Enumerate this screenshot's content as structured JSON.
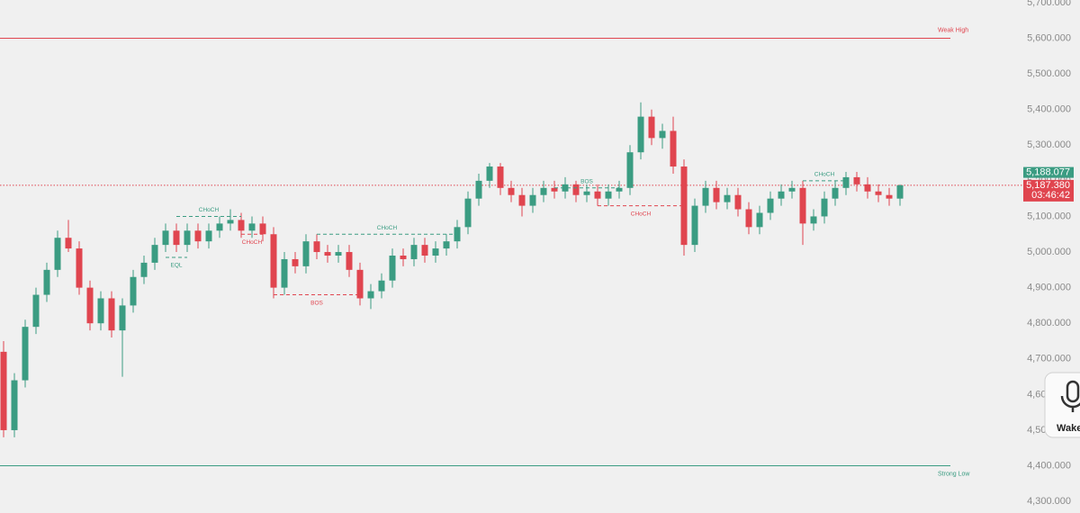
{
  "chart_data": {
    "type": "candlestick",
    "up_color": "#3b9c82",
    "down_color": "#e0454f",
    "ylim": [
      4270,
      5710
    ],
    "yticks": [
      {
        "value": 5700,
        "label": "5,700.000"
      },
      {
        "value": 5600,
        "label": "5,600.000"
      },
      {
        "value": 5500,
        "label": "5,500.000"
      },
      {
        "value": 5400,
        "label": "5,400.000"
      },
      {
        "value": 5300,
        "label": "5,300.000"
      },
      {
        "value": 5200,
        "label": "5,200.000"
      },
      {
        "value": 5100,
        "label": "5,100.000"
      },
      {
        "value": 5000,
        "label": "5,000.000"
      },
      {
        "value": 4900,
        "label": "4,900.000"
      },
      {
        "value": 4800,
        "label": "4,800.000"
      },
      {
        "value": 4700,
        "label": "4,700.000"
      },
      {
        "value": 4600,
        "label": "4,600.000"
      },
      {
        "value": 4500,
        "label": "4,500.000"
      },
      {
        "value": 4400,
        "label": "4,400.000"
      },
      {
        "value": 4300,
        "label": "4,300.000"
      }
    ],
    "candles": [
      [
        4720,
        4750,
        4480,
        4500
      ],
      [
        4500,
        4660,
        4480,
        4640
      ],
      [
        4640,
        4810,
        4620,
        4790
      ],
      [
        4790,
        4900,
        4770,
        4880
      ],
      [
        4880,
        4970,
        4860,
        4950
      ],
      [
        4950,
        5060,
        4930,
        5040
      ],
      [
        5040,
        5090,
        5000,
        5010
      ],
      [
        5010,
        5030,
        4880,
        4900
      ],
      [
        4900,
        4920,
        4780,
        4800
      ],
      [
        4800,
        4890,
        4780,
        4870
      ],
      [
        4870,
        4890,
        4760,
        4780
      ],
      [
        4780,
        4870,
        4650,
        4850
      ],
      [
        4850,
        4950,
        4830,
        4930
      ],
      [
        4930,
        4990,
        4910,
        4970
      ],
      [
        4970,
        5040,
        4950,
        5020
      ],
      [
        5020,
        5080,
        5000,
        5060
      ],
      [
        5060,
        5080,
        5000,
        5020
      ],
      [
        5020,
        5080,
        5000,
        5060
      ],
      [
        5060,
        5080,
        5010,
        5030
      ],
      [
        5030,
        5080,
        5010,
        5060
      ],
      [
        5060,
        5100,
        5040,
        5080
      ],
      [
        5080,
        5120,
        5060,
        5090
      ],
      [
        5090,
        5110,
        5040,
        5060
      ],
      [
        5060,
        5100,
        5040,
        5080
      ],
      [
        5080,
        5100,
        5030,
        5050
      ],
      [
        5050,
        5070,
        4870,
        4900
      ],
      [
        4900,
        5000,
        4880,
        4980
      ],
      [
        4980,
        5000,
        4940,
        4960
      ],
      [
        4960,
        5050,
        4940,
        5030
      ],
      [
        5030,
        5050,
        4980,
        5000
      ],
      [
        5000,
        5020,
        4970,
        4990
      ],
      [
        4990,
        5020,
        4970,
        5000
      ],
      [
        5000,
        5020,
        4930,
        4950
      ],
      [
        4950,
        4970,
        4850,
        4870
      ],
      [
        4870,
        4910,
        4840,
        4890
      ],
      [
        4890,
        4940,
        4870,
        4920
      ],
      [
        4920,
        5010,
        4900,
        4990
      ],
      [
        4990,
        5010,
        4960,
        4980
      ],
      [
        4980,
        5040,
        4960,
        5020
      ],
      [
        5020,
        5040,
        4970,
        4990
      ],
      [
        4990,
        5030,
        4970,
        5010
      ],
      [
        5010,
        5050,
        4990,
        5030
      ],
      [
        5030,
        5090,
        5010,
        5070
      ],
      [
        5070,
        5170,
        5050,
        5150
      ],
      [
        5150,
        5220,
        5130,
        5200
      ],
      [
        5200,
        5250,
        5180,
        5240
      ],
      [
        5240,
        5250,
        5160,
        5180
      ],
      [
        5180,
        5200,
        5140,
        5160
      ],
      [
        5160,
        5180,
        5100,
        5130
      ],
      [
        5130,
        5180,
        5110,
        5160
      ],
      [
        5160,
        5200,
        5140,
        5180
      ],
      [
        5180,
        5200,
        5150,
        5170
      ],
      [
        5170,
        5210,
        5150,
        5190
      ],
      [
        5190,
        5200,
        5140,
        5160
      ],
      [
        5160,
        5190,
        5140,
        5170
      ],
      [
        5170,
        5190,
        5130,
        5150
      ],
      [
        5150,
        5190,
        5130,
        5170
      ],
      [
        5170,
        5200,
        5150,
        5180
      ],
      [
        5180,
        5300,
        5160,
        5280
      ],
      [
        5280,
        5420,
        5260,
        5380
      ],
      [
        5380,
        5400,
        5300,
        5320
      ],
      [
        5320,
        5360,
        5290,
        5340
      ],
      [
        5340,
        5380,
        5220,
        5240
      ],
      [
        5240,
        5260,
        4990,
        5020
      ],
      [
        5020,
        5150,
        5000,
        5130
      ],
      [
        5130,
        5200,
        5110,
        5180
      ],
      [
        5180,
        5200,
        5120,
        5140
      ],
      [
        5140,
        5180,
        5120,
        5160
      ],
      [
        5160,
        5180,
        5100,
        5120
      ],
      [
        5120,
        5140,
        5050,
        5070
      ],
      [
        5070,
        5130,
        5050,
        5110
      ],
      [
        5110,
        5170,
        5090,
        5150
      ],
      [
        5150,
        5190,
        5130,
        5170
      ],
      [
        5170,
        5200,
        5150,
        5180
      ],
      [
        5180,
        5200,
        5020,
        5080
      ],
      [
        5080,
        5120,
        5060,
        5100
      ],
      [
        5100,
        5170,
        5080,
        5150
      ],
      [
        5150,
        5200,
        5130,
        5180
      ],
      [
        5180,
        5225,
        5160,
        5210
      ],
      [
        5210,
        5225,
        5170,
        5190
      ],
      [
        5190,
        5210,
        5150,
        5170
      ],
      [
        5170,
        5190,
        5140,
        5160
      ],
      [
        5160,
        5180,
        5130,
        5150
      ],
      [
        5150,
        5190,
        5130,
        5187.38
      ]
    ],
    "annotations": [
      {
        "text": "CHoCH",
        "price": 5100,
        "start": 16,
        "end": 22,
        "color": "#3b9c82",
        "side": "above"
      },
      {
        "text": "EQL",
        "price": 4985,
        "start": 15,
        "end": 17,
        "color": "#3b9c82",
        "side": "below"
      },
      {
        "text": "CHoCH",
        "price": 5050,
        "start": 22,
        "end": 24,
        "color": "#e0454f",
        "side": "below"
      },
      {
        "text": "BOS",
        "price": 4880,
        "start": 25,
        "end": 33,
        "color": "#e0454f",
        "side": "below"
      },
      {
        "text": "CHoCH",
        "price": 5050,
        "start": 29,
        "end": 42,
        "color": "#3b9c82",
        "side": "above"
      },
      {
        "text": "BOS",
        "price": 5180,
        "start": 51,
        "end": 57,
        "color": "#3b9c82",
        "side": "above"
      },
      {
        "text": "CHoCH",
        "price": 5130,
        "start": 55,
        "end": 63,
        "color": "#e0454f",
        "side": "below"
      },
      {
        "text": "CHoCH",
        "price": 5200,
        "start": 74,
        "end": 78,
        "color": "#3b9c82",
        "side": "above"
      }
    ],
    "levels": [
      {
        "label": "Weak High",
        "value": 5600,
        "color": "#e0454f"
      },
      {
        "label": "Strong Low",
        "value": 4400,
        "color": "#3b9c82"
      }
    ],
    "bid": {
      "value": 5188.077,
      "label": "5,188.077",
      "color": "#3b9c82"
    },
    "last_price": {
      "value": 5187.38,
      "label": "5,187.380",
      "color": "#e0454f"
    },
    "countdown": "03:46:42"
  },
  "widget": {
    "label": "Wake"
  }
}
